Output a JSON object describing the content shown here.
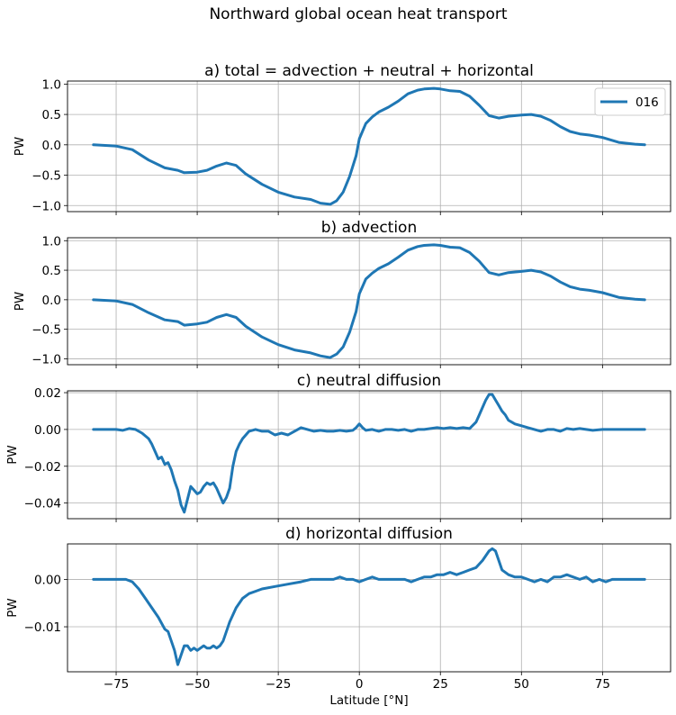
{
  "figure": {
    "suptitle": "Northward global ocean heat transport",
    "xlabel": "Latitude [°N]",
    "x_ticks": [
      -75,
      -50,
      -25,
      0,
      25,
      50,
      75
    ],
    "x_tick_labels": [
      "−75",
      "−50",
      "−25",
      "0",
      "25",
      "50",
      "75"
    ],
    "xlim": [
      -90,
      96
    ],
    "line_color": "#1f77b4",
    "legend": {
      "label": "016",
      "placement": "upper right"
    }
  },
  "chart_data": [
    {
      "type": "line",
      "title": "a) total = advection + neutral + horizontal",
      "ylabel": "PW",
      "ylim": [
        -1.1,
        1.05
      ],
      "y_ticks": [
        1.0,
        0.5,
        0.0,
        -0.5,
        -1.0
      ],
      "y_tick_labels": [
        "1.0",
        "0.5",
        "0.0",
        "−0.5",
        "−1.0"
      ],
      "grid": true,
      "series": [
        {
          "name": "016",
          "x": [
            -82,
            -75,
            -70,
            -65,
            -60,
            -56,
            -54,
            -50,
            -47,
            -44,
            -41,
            -38,
            -35,
            -30,
            -25,
            -20,
            -15,
            -12,
            -9,
            -7,
            -5,
            -3,
            -1,
            0,
            2,
            4,
            6,
            9,
            12,
            15,
            18,
            20,
            23,
            25,
            28,
            31,
            34,
            37,
            40,
            43,
            46,
            50,
            53,
            56,
            59,
            62,
            65,
            68,
            71,
            75,
            80,
            85,
            88
          ],
          "y": [
            0.0,
            -0.02,
            -0.08,
            -0.25,
            -0.38,
            -0.42,
            -0.46,
            -0.45,
            -0.42,
            -0.35,
            -0.3,
            -0.34,
            -0.48,
            -0.65,
            -0.78,
            -0.86,
            -0.9,
            -0.96,
            -0.98,
            -0.92,
            -0.78,
            -0.52,
            -0.18,
            0.1,
            0.35,
            0.46,
            0.54,
            0.62,
            0.72,
            0.84,
            0.9,
            0.92,
            0.93,
            0.92,
            0.89,
            0.88,
            0.8,
            0.65,
            0.48,
            0.44,
            0.47,
            0.49,
            0.5,
            0.47,
            0.4,
            0.3,
            0.22,
            0.18,
            0.16,
            0.12,
            0.04,
            0.01,
            0.0
          ]
        }
      ]
    },
    {
      "type": "line",
      "title": "b) advection",
      "ylabel": "PW",
      "ylim": [
        -1.1,
        1.05
      ],
      "y_ticks": [
        1.0,
        0.5,
        0.0,
        -0.5,
        -1.0
      ],
      "y_tick_labels": [
        "1.0",
        "0.5",
        "0.0",
        "−0.5",
        "−1.0"
      ],
      "grid": true,
      "series": [
        {
          "x": [
            -82,
            -75,
            -70,
            -65,
            -60,
            -56,
            -54,
            -50,
            -47,
            -44,
            -41,
            -38,
            -35,
            -30,
            -25,
            -20,
            -15,
            -12,
            -9,
            -7,
            -5,
            -3,
            -1,
            0,
            2,
            4,
            6,
            9,
            12,
            15,
            18,
            20,
            23,
            25,
            28,
            31,
            34,
            37,
            40,
            43,
            46,
            50,
            53,
            56,
            59,
            62,
            65,
            68,
            71,
            75,
            80,
            85,
            88
          ],
          "y": [
            0.0,
            -0.02,
            -0.08,
            -0.22,
            -0.34,
            -0.37,
            -0.43,
            -0.41,
            -0.38,
            -0.3,
            -0.25,
            -0.3,
            -0.45,
            -0.63,
            -0.76,
            -0.85,
            -0.9,
            -0.95,
            -0.98,
            -0.92,
            -0.8,
            -0.55,
            -0.2,
            0.1,
            0.35,
            0.45,
            0.53,
            0.61,
            0.72,
            0.84,
            0.9,
            0.92,
            0.93,
            0.92,
            0.89,
            0.88,
            0.8,
            0.65,
            0.46,
            0.42,
            0.46,
            0.48,
            0.5,
            0.47,
            0.4,
            0.3,
            0.22,
            0.18,
            0.16,
            0.12,
            0.04,
            0.01,
            0.0
          ]
        }
      ]
    },
    {
      "type": "line",
      "title": "c) neutral diffusion",
      "ylabel": "PW",
      "ylim": [
        -0.0485,
        0.021
      ],
      "y_ticks": [
        0.02,
        0.0,
        -0.02,
        -0.04
      ],
      "y_tick_labels": [
        "0.02",
        "0.00",
        "−0.02",
        "−0.04"
      ],
      "grid": true,
      "series": [
        {
          "x": [
            -82,
            -78,
            -75,
            -73,
            -71,
            -69,
            -67,
            -65,
            -64,
            -63,
            -62,
            -61,
            -60,
            -59,
            -58,
            -57,
            -56,
            -55,
            -54,
            -53,
            -52,
            -51,
            -50,
            -49,
            -48,
            -47,
            -46,
            -45,
            -44,
            -43,
            -42,
            -41,
            -40,
            -39,
            -38,
            -37,
            -36,
            -34,
            -32,
            -30,
            -28,
            -26,
            -24,
            -22,
            -20,
            -18,
            -16,
            -14,
            -12,
            -10,
            -8,
            -6,
            -4,
            -2,
            -1,
            0,
            1,
            2,
            4,
            6,
            8,
            10,
            12,
            14,
            16,
            18,
            20,
            22,
            24,
            26,
            28,
            30,
            32,
            34,
            36,
            37,
            38,
            39,
            40,
            41,
            42,
            43,
            44,
            45,
            46,
            48,
            50,
            52,
            54,
            56,
            58,
            60,
            62,
            64,
            66,
            68,
            70,
            72,
            75,
            78,
            82,
            85,
            88
          ],
          "y": [
            0.0,
            0.0,
            0.0,
            -0.0005,
            0.0005,
            0.0,
            -0.002,
            -0.005,
            -0.008,
            -0.012,
            -0.016,
            -0.015,
            -0.019,
            -0.018,
            -0.022,
            -0.028,
            -0.033,
            -0.041,
            -0.045,
            -0.038,
            -0.031,
            -0.033,
            -0.035,
            -0.034,
            -0.031,
            -0.029,
            -0.03,
            -0.029,
            -0.032,
            -0.036,
            -0.04,
            -0.037,
            -0.032,
            -0.02,
            -0.012,
            -0.008,
            -0.005,
            -0.001,
            0.0,
            -0.001,
            -0.001,
            -0.003,
            -0.002,
            -0.003,
            -0.001,
            0.001,
            0.0,
            -0.001,
            -0.0005,
            -0.001,
            -0.001,
            -0.0005,
            -0.001,
            -0.0005,
            0.001,
            0.003,
            0.001,
            -0.0005,
            0.0,
            -0.001,
            0.0,
            0.0,
            -0.0005,
            0.0,
            -0.001,
            0.0,
            0.0,
            0.0005,
            0.001,
            0.0005,
            0.001,
            0.0005,
            0.001,
            0.0005,
            0.004,
            0.008,
            0.012,
            0.016,
            0.019,
            0.019,
            0.016,
            0.013,
            0.01,
            0.008,
            0.005,
            0.003,
            0.002,
            0.001,
            0.0,
            -0.001,
            0.0,
            0.0,
            -0.001,
            0.0005,
            0.0,
            0.0005,
            0.0,
            -0.0005,
            0.0,
            0.0,
            0.0,
            0.0,
            0.0
          ]
        }
      ]
    },
    {
      "type": "line",
      "title": "d) horizontal diffusion",
      "ylabel": "PW",
      "ylim": [
        -0.0195,
        0.0075
      ],
      "y_ticks": [
        0.0,
        -0.01
      ],
      "y_tick_labels": [
        "0.00",
        "−0.01"
      ],
      "grid": true,
      "series": [
        {
          "x": [
            -82,
            -78,
            -75,
            -72,
            -70,
            -68,
            -66,
            -64,
            -62,
            -60,
            -59,
            -58,
            -57,
            -56,
            -55,
            -54,
            -53,
            -52,
            -51,
            -50,
            -49,
            -48,
            -47,
            -46,
            -45,
            -44,
            -43,
            -42,
            -41,
            -40,
            -38,
            -36,
            -34,
            -32,
            -30,
            -26,
            -22,
            -18,
            -15,
            -12,
            -10,
            -8,
            -6,
            -4,
            -2,
            0,
            2,
            4,
            6,
            8,
            10,
            12,
            14,
            16,
            18,
            20,
            22,
            24,
            26,
            28,
            30,
            32,
            34,
            36,
            38,
            40,
            41,
            42,
            43,
            44,
            46,
            48,
            50,
            52,
            54,
            56,
            58,
            60,
            62,
            64,
            66,
            68,
            70,
            72,
            74,
            76,
            78,
            82,
            86,
            88
          ],
          "y": [
            0.0,
            0.0,
            0.0,
            0.0,
            -0.0005,
            -0.002,
            -0.004,
            -0.006,
            -0.008,
            -0.0105,
            -0.011,
            -0.013,
            -0.015,
            -0.018,
            -0.016,
            -0.014,
            -0.014,
            -0.015,
            -0.0145,
            -0.015,
            -0.0145,
            -0.014,
            -0.0145,
            -0.0145,
            -0.014,
            -0.0145,
            -0.014,
            -0.013,
            -0.011,
            -0.009,
            -0.006,
            -0.004,
            -0.003,
            -0.0025,
            -0.002,
            -0.0015,
            -0.001,
            -0.0005,
            0.0,
            0.0,
            0.0,
            0.0,
            0.0005,
            0.0,
            0.0,
            -0.0005,
            0.0,
            0.0005,
            0.0,
            0.0,
            0.0,
            0.0,
            0.0,
            -0.0005,
            0.0,
            0.0005,
            0.0005,
            0.001,
            0.001,
            0.0015,
            0.001,
            0.0015,
            0.002,
            0.0025,
            0.004,
            0.006,
            0.0065,
            0.006,
            0.004,
            0.002,
            0.001,
            0.0005,
            0.0005,
            0.0,
            -0.0005,
            0.0,
            -0.0005,
            0.0005,
            0.0005,
            0.001,
            0.0005,
            0.0,
            0.0005,
            -0.0005,
            0.0,
            -0.0005,
            0.0,
            0.0,
            0.0,
            0.0
          ]
        }
      ]
    }
  ]
}
